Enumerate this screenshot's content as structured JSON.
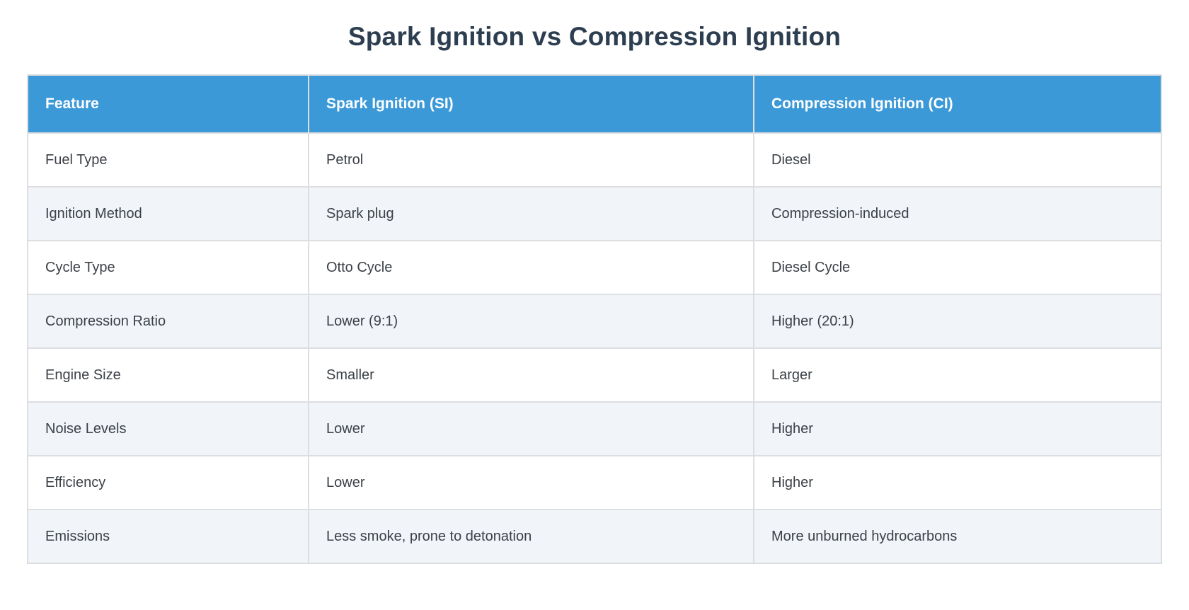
{
  "page": {
    "title": "Spark Ignition vs Compression Ignition"
  },
  "theme": {
    "title_color": "#2c3e50",
    "header_bg": "#3b99d8",
    "header_text": "#ffffff",
    "row_bg": "#ffffff",
    "row_alt_bg": "#f1f4f8",
    "border_color": "#dcdee1",
    "cell_text": "#3c4147"
  },
  "chart_data": {
    "type": "table",
    "title": "Spark Ignition vs Compression Ignition",
    "columns": [
      "Feature",
      "Spark Ignition (SI)",
      "Compression Ignition (CI)"
    ],
    "rows": [
      [
        "Fuel Type",
        "Petrol",
        "Diesel"
      ],
      [
        "Ignition Method",
        "Spark plug",
        "Compression-induced"
      ],
      [
        "Cycle Type",
        "Otto Cycle",
        "Diesel Cycle"
      ],
      [
        "Compression Ratio",
        "Lower (9:1)",
        "Higher (20:1)"
      ],
      [
        "Engine Size",
        "Smaller",
        "Larger"
      ],
      [
        "Noise Levels",
        "Lower",
        "Higher"
      ],
      [
        "Efficiency",
        "Lower",
        "Higher"
      ],
      [
        "Emissions",
        "Less smoke, prone to detonation",
        "More unburned hydrocarbons"
      ]
    ],
    "layout": {
      "header_position": "top",
      "grid": true,
      "zebra_striping": true
    }
  }
}
